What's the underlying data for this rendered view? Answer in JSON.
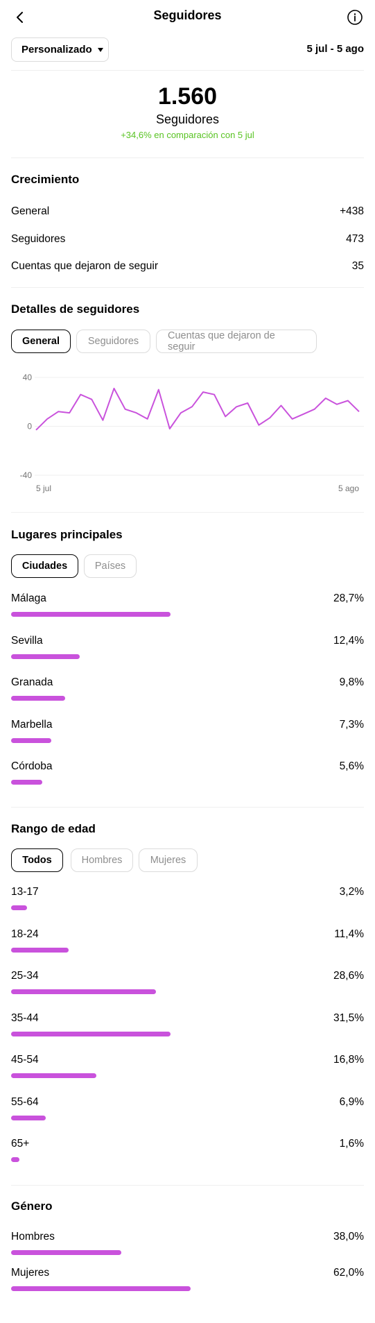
{
  "header": {
    "title": "Seguidores",
    "filter_label": "Personalizado",
    "date_range": "5 jul - 5 ago"
  },
  "summary": {
    "count": "1.560",
    "label": "Seguidores",
    "delta": "+34,6% en comparación con 5 jul"
  },
  "growth": {
    "title": "Crecimiento",
    "rows": [
      {
        "label": "General",
        "value": "+438"
      },
      {
        "label": "Seguidores",
        "value": "473"
      },
      {
        "label": "Cuentas que dejaron de seguir",
        "value": "35"
      }
    ]
  },
  "details": {
    "title": "Detalles de seguidores",
    "tabs": [
      "General",
      "Seguidores",
      "Cuentas que dejaron de seguir"
    ],
    "active_tab": 0
  },
  "chart_data": {
    "type": "line",
    "ylim": [
      -40,
      40
    ],
    "y_ticks": [
      "40",
      "0",
      "-40"
    ],
    "x_start_label": "5 jul",
    "x_end_label": "5 ago",
    "color": "#c952dc",
    "values": [
      -3,
      6,
      12,
      11,
      26,
      22,
      5,
      31,
      14,
      11,
      6,
      30,
      -2,
      11,
      16,
      28,
      26,
      8,
      16,
      19,
      1,
      7,
      17,
      6,
      10,
      14,
      23,
      18,
      21,
      12
    ]
  },
  "locations": {
    "title": "Lugares principales",
    "tabs": [
      "Ciudades",
      "Países"
    ],
    "active_tab": 0,
    "items": [
      {
        "label": "Málaga",
        "value": "28,7%",
        "pct": 28.7
      },
      {
        "label": "Sevilla",
        "value": "12,4%",
        "pct": 12.4
      },
      {
        "label": "Granada",
        "value": "9,8%",
        "pct": 9.8
      },
      {
        "label": "Marbella",
        "value": "7,3%",
        "pct": 7.3
      },
      {
        "label": "Córdoba",
        "value": "5,6%",
        "pct": 5.6
      }
    ]
  },
  "age": {
    "title": "Rango de edad",
    "tabs": [
      "Todos",
      "Hombres",
      "Mujeres"
    ],
    "active_tab": 0,
    "items": [
      {
        "label": "13-17",
        "value": "3,2%",
        "pct": 3.2
      },
      {
        "label": "18-24",
        "value": "11,4%",
        "pct": 11.4
      },
      {
        "label": "25-34",
        "value": "28,6%",
        "pct": 28.6
      },
      {
        "label": "35-44",
        "value": "31,5%",
        "pct": 31.5
      },
      {
        "label": "45-54",
        "value": "16,8%",
        "pct": 16.8
      },
      {
        "label": "55-64",
        "value": "6,9%",
        "pct": 6.9
      },
      {
        "label": "65+",
        "value": "1,6%",
        "pct": 1.6
      }
    ]
  },
  "gender": {
    "title": "Género",
    "items": [
      {
        "label": "Hombres",
        "value": "38,0%",
        "pct": 38.0
      },
      {
        "label": "Mujeres",
        "value": "62,0%",
        "pct": 62.0
      }
    ]
  }
}
